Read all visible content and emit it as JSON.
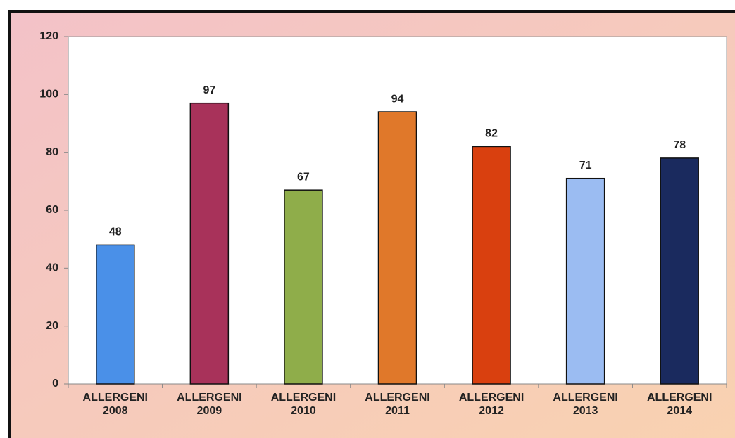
{
  "chart_data": {
    "type": "bar",
    "categories": [
      "ALLERGENI 2008",
      "ALLERGENI 2009",
      "ALLERGENI 2010",
      "ALLERGENI 2011",
      "ALLERGENI 2012",
      "ALLERGENI 2013",
      "ALLERGENI 2014"
    ],
    "values": [
      48,
      97,
      67,
      94,
      82,
      71,
      78
    ],
    "colors": [
      "#4a90e8",
      "#a8325a",
      "#8fad4a",
      "#e0782a",
      "#d9400f",
      "#9bbcf2",
      "#1a2a5e"
    ],
    "ylim": [
      0,
      120
    ],
    "yticks": [
      0,
      20,
      40,
      60,
      80,
      100,
      120
    ],
    "grid": false
  }
}
